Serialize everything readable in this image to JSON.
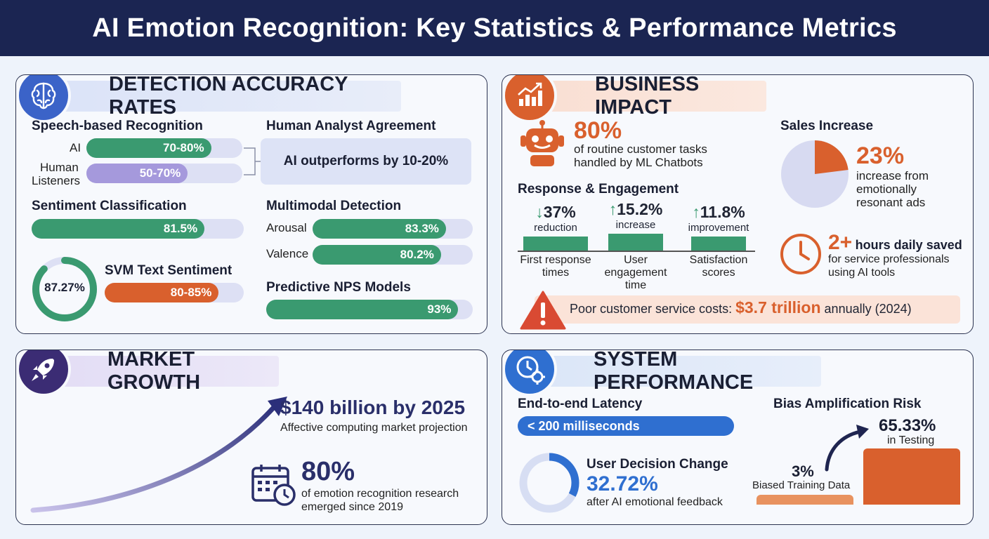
{
  "title": "AI Emotion Recognition: Key Statistics & Performance Metrics",
  "colors": {
    "header": "#1b2552",
    "green": "#3a9a70",
    "orange": "#d9602d",
    "purple": "#a599dc",
    "blue": "#2f6fd0",
    "navy": "#2a2f6a"
  },
  "detection": {
    "title": "DETECTION ACCURACY RATES",
    "icon": "brain-icon",
    "speech": {
      "label": "Speech-based Recognition",
      "ai_label": "AI",
      "ai_value": "70-80%",
      "human_label_1": "Human",
      "human_label_2": "Listeners",
      "human_value": "50-70%",
      "ai_fill": 0.8,
      "human_fill": 0.65
    },
    "human_agreement": {
      "label": "Human Analyst Agreement",
      "text": "AI outperforms by 10-20%"
    },
    "sentiment": {
      "label": "Sentiment Classification",
      "value": "81.5%",
      "fill": 0.815
    },
    "multimodal": {
      "label": "Multimodal Detection",
      "arousal_label": "Arousal",
      "arousal_value": "83.3%",
      "arousal_fill": 0.833,
      "valence_label": "Valence",
      "valence_value": "80.2%",
      "valence_fill": 0.802
    },
    "svm": {
      "label": "SVM Text Sentiment",
      "value": "80-85%",
      "ring_value": "87.27%",
      "ring_fraction": 0.8727,
      "fill": 0.82
    },
    "nps": {
      "label": "Predictive NPS Models",
      "value": "93%",
      "fill": 0.93
    }
  },
  "business": {
    "title": "BUSINESS IMPACT",
    "icon": "growth-chart-icon",
    "chatbot": {
      "value": "80%",
      "line1": "of routine customer tasks",
      "line2": "handled by ML Chatbots",
      "icon": "robot-icon"
    },
    "engagement": {
      "label": "Response & Engagement",
      "items": [
        {
          "arrow": "↓",
          "value": "37%",
          "sub": "reduction",
          "cap1": "First response",
          "cap2": "times",
          "cap3": ""
        },
        {
          "arrow": "↑",
          "value": "15.2%",
          "sub": "increase",
          "cap1": "User",
          "cap2": "engagement",
          "cap3": "time"
        },
        {
          "arrow": "↑",
          "value": "11.8%",
          "sub": "improvement",
          "cap1": "Satisfaction",
          "cap2": "scores",
          "cap3": ""
        }
      ]
    },
    "sales": {
      "label": "Sales Increase",
      "value": "23%",
      "line1": "increase from",
      "line2": "emotionally",
      "line3": "resonant ads",
      "fraction": 0.23
    },
    "hours": {
      "value": "2+",
      "suffix": "hours daily saved",
      "line1": "for service professionals",
      "line2": "using AI tools",
      "icon": "clock-icon"
    },
    "cost": {
      "prefix": "Poor customer service costs:",
      "value": "$3.7 trillion",
      "suffix": "annually (2024)",
      "icon": "warning-icon"
    }
  },
  "market": {
    "title": "MARKET GROWTH",
    "icon": "rocket-icon",
    "projection": {
      "value": "$140 billion by 2025",
      "caption": "Affective computing market projection"
    },
    "research": {
      "value": "80%",
      "line1": "of emotion recognition research",
      "line2": "emerged since 2019",
      "icon": "calendar-clock-icon"
    }
  },
  "system": {
    "title": "SYSTEM PERFORMANCE",
    "icon": "clock-gear-icon",
    "latency": {
      "label": "End-to-end Latency",
      "value": "< 200 milliseconds"
    },
    "decision": {
      "label": "User Decision Change",
      "value": "32.72%",
      "caption": "after AI emotional feedback",
      "fraction": 0.3272
    },
    "bias": {
      "label": "Bias Amplification Risk",
      "top_value": "65.33%",
      "top_caption": "in Testing",
      "low_value": "3%",
      "low_caption": "Biased Training Data"
    }
  }
}
